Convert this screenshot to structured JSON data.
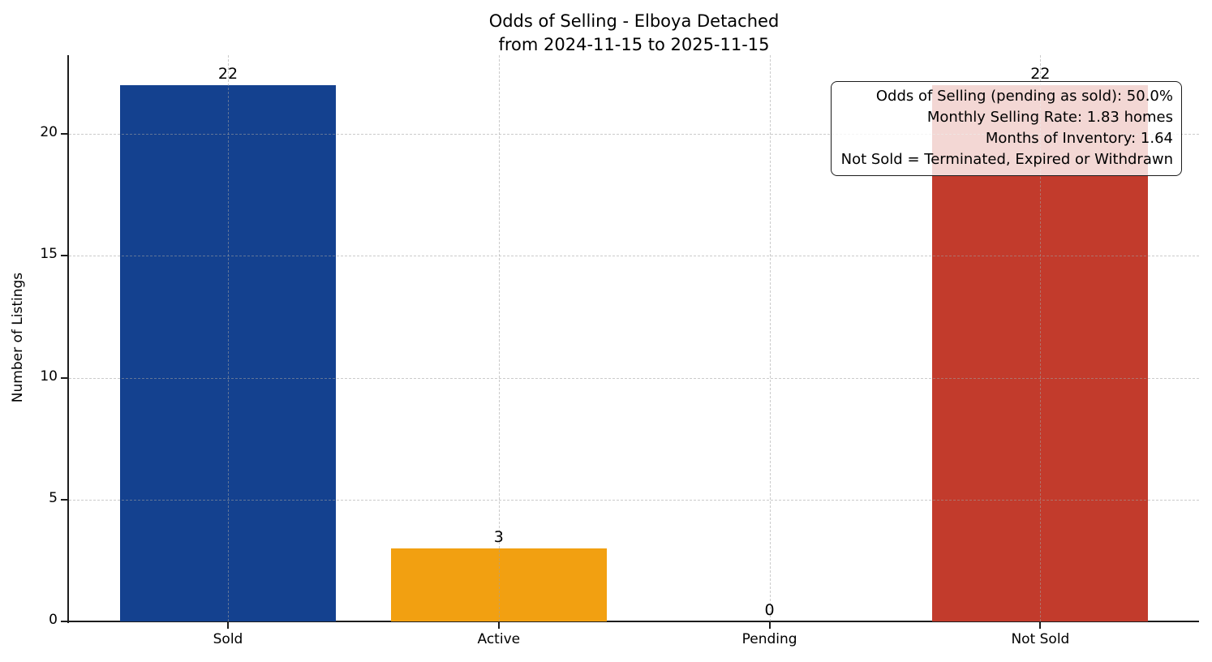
{
  "chart_data": {
    "type": "bar",
    "title": "Odds of Selling - Elboya Detached",
    "subtitle": "from 2024-11-15 to 2025-11-15",
    "ylabel": "Number of Listings",
    "xlabel": "",
    "categories": [
      "Sold",
      "Active",
      "Pending",
      "Not Sold"
    ],
    "values": [
      22,
      3,
      0,
      22
    ],
    "value_labels": [
      "22",
      "3",
      "0",
      "22"
    ],
    "bar_colors": [
      "#14418f",
      "#f2a011",
      "#808080",
      "#c23b2c"
    ],
    "yticks": [
      0,
      5,
      10,
      15,
      20
    ],
    "ylim": [
      0,
      23.2
    ],
    "grid": "dashed, horizontal and vertical",
    "legend_position": "none",
    "annotation": {
      "lines": [
        "Odds of Selling (pending as sold): 50.0%",
        "Monthly Selling Rate: 1.83 homes",
        "Months of Inventory: 1.64",
        "Not Sold = Terminated, Expired or Withdrawn"
      ]
    }
  }
}
